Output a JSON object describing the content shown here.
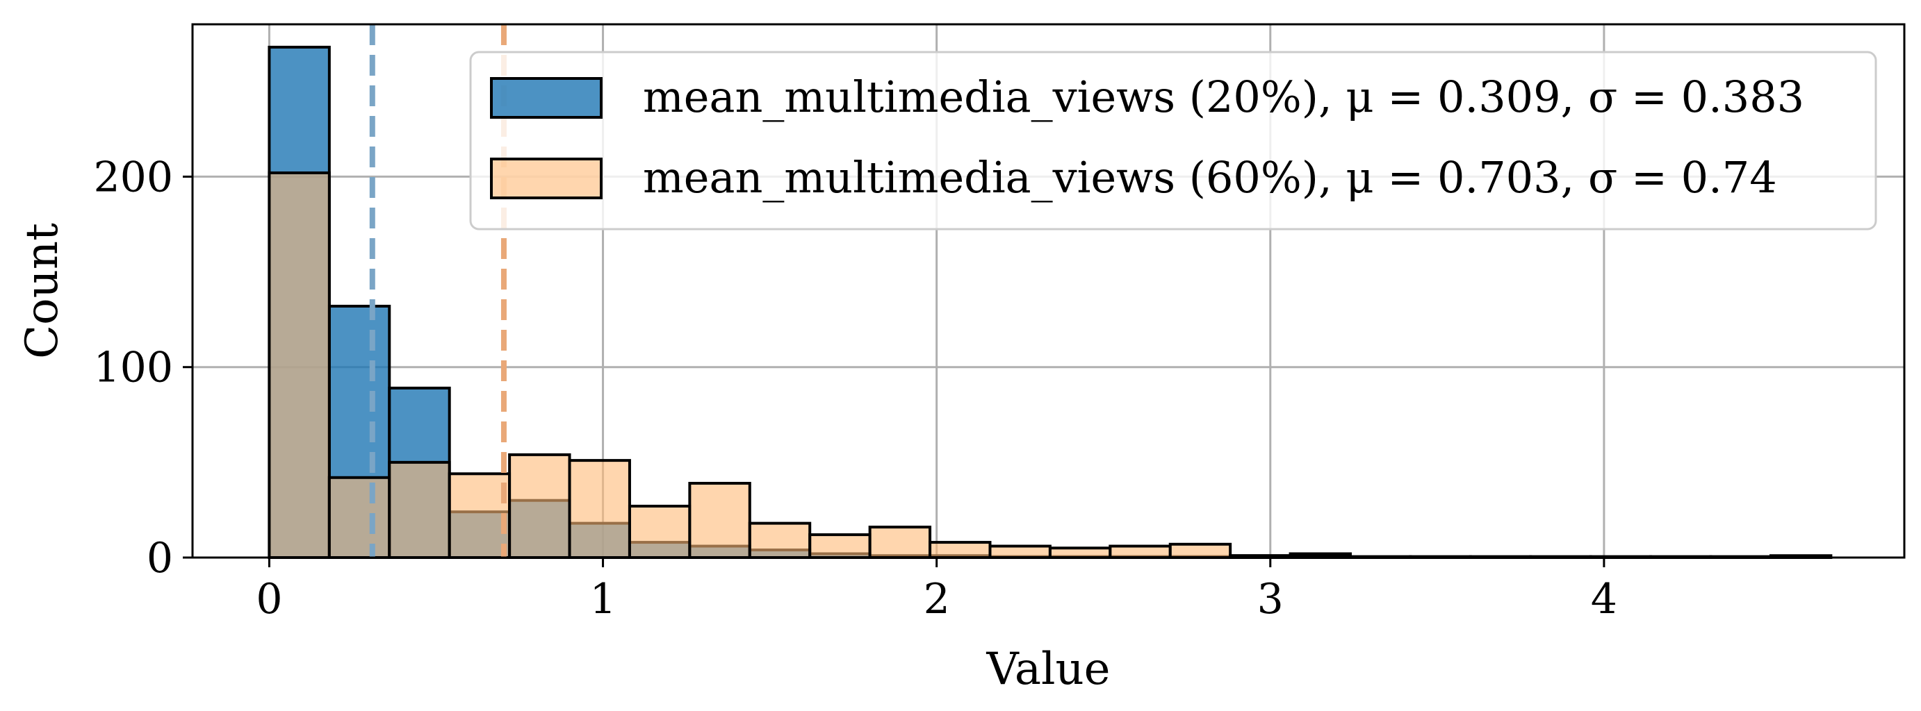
{
  "chart_data": {
    "type": "histogram",
    "xlabel": "Value",
    "ylabel": "Count",
    "xlim": [
      -0.23,
      4.9
    ],
    "ylim": [
      0,
      280
    ],
    "xticks": [
      0,
      1,
      2,
      3,
      4
    ],
    "yticks": [
      0,
      100,
      200
    ],
    "grid": true,
    "legend_position": "top-right",
    "bin_edges": [
      0.0,
      0.18,
      0.36,
      0.54,
      0.72,
      0.9,
      1.08,
      1.26,
      1.44,
      1.62,
      1.8,
      1.98,
      2.16,
      2.34,
      2.52,
      2.7,
      2.88,
      3.06,
      3.24,
      3.42,
      3.6,
      3.78,
      3.96,
      4.14,
      4.32,
      4.5,
      4.68
    ],
    "series": [
      {
        "name": "mean_multimedia_views (20%), μ = 0.309, σ = 0.383",
        "color": "#1f77b4",
        "mean": 0.309,
        "sigma": 0.383,
        "counts": [
          268,
          132,
          89,
          24,
          30,
          18,
          8,
          6,
          4,
          2,
          1,
          1,
          0.5,
          0.5,
          0.5,
          0.5,
          1,
          2,
          0.5,
          0.5,
          0.5,
          0.5,
          0.5,
          0.5,
          0.5,
          1
        ]
      },
      {
        "name": "mean_multimedia_views (60%), μ = 0.703, σ = 0.74",
        "color": "#ffbb78",
        "mean": 0.703,
        "sigma": 0.74,
        "counts": [
          202,
          42,
          50,
          44,
          54,
          51,
          27,
          39,
          18,
          12,
          16,
          8,
          6,
          5,
          6,
          7,
          1,
          1,
          0,
          0,
          0,
          0,
          0,
          0,
          0,
          0
        ]
      }
    ]
  }
}
